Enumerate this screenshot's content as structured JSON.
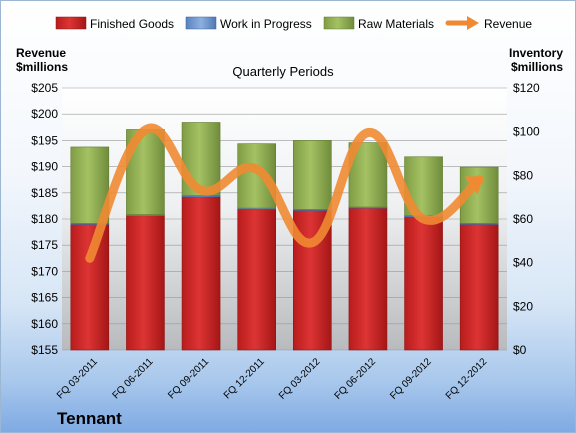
{
  "company": "Tennant",
  "chart_data": {
    "type": "bar",
    "title": "Quarterly Periods",
    "left_axis_label": [
      "Revenue",
      "$millions"
    ],
    "right_axis_label": [
      "Inventory",
      "$millions"
    ],
    "categories": [
      "FQ 03-2011",
      "FQ 06-2011",
      "FQ 09-2011",
      "FQ 12-2011",
      "FQ 03-2012",
      "FQ 06-2012",
      "FQ 09-2012",
      "FQ 12-2012"
    ],
    "left_axis": {
      "min": 155,
      "max": 205,
      "step": 5,
      "format": "$"
    },
    "right_axis": {
      "min": 0,
      "max": 120,
      "step": 20,
      "format": "$"
    },
    "legend_position": "top",
    "series": [
      {
        "name": "Finished Goods",
        "axis": "right",
        "type": "bar",
        "stack": true,
        "color": "#d42a2a",
        "values": [
          57.5,
          61.5,
          70.2,
          64.5,
          63.9,
          65.0,
          61.0,
          57.5
        ]
      },
      {
        "name": "Work in Progress",
        "axis": "right",
        "type": "bar",
        "stack": true,
        "color": "#6f97d0",
        "values": [
          0.5,
          0.5,
          0.5,
          0.5,
          0.5,
          0.5,
          0.5,
          0.5
        ]
      },
      {
        "name": "Raw Materials",
        "axis": "right",
        "type": "bar",
        "stack": true,
        "color": "#9bbb59",
        "values": [
          35.0,
          39.0,
          33.5,
          29.5,
          31.6,
          29.5,
          27.0,
          25.8
        ]
      },
      {
        "name": "Revenue",
        "axis": "left",
        "type": "line",
        "color": "#f08a32",
        "values": [
          172.5,
          197.0,
          185.5,
          189.5,
          175.5,
          196.5,
          180.0,
          187.5
        ]
      }
    ]
  }
}
